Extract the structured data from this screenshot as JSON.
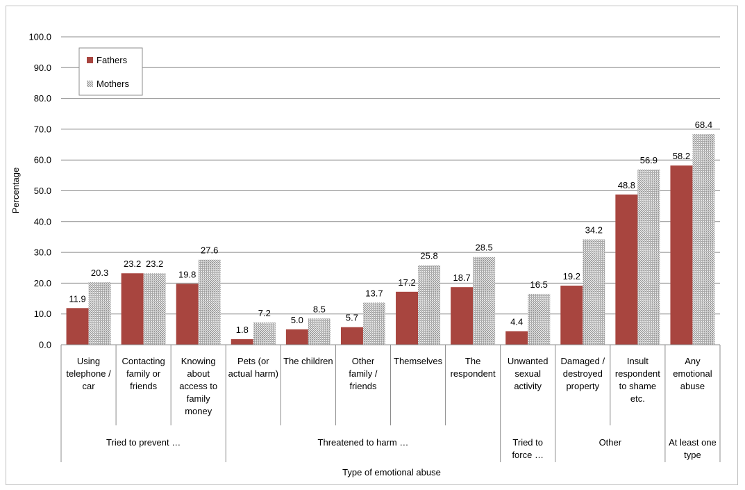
{
  "chart_data": {
    "type": "bar",
    "xlabel": "Type of emotional abuse",
    "ylabel": "Percentage",
    "ylim": [
      0,
      100
    ],
    "yticks": [
      "0.0",
      "10.0",
      "20.0",
      "30.0",
      "40.0",
      "50.0",
      "60.0",
      "70.0",
      "80.0",
      "90.0",
      "100.0"
    ],
    "grid": true,
    "legend_position": "top-left",
    "categories": [
      [
        "Using",
        "telephone /",
        "car"
      ],
      [
        "Contacting",
        "family or",
        "friends"
      ],
      [
        "Knowing",
        "about",
        "access to",
        "family",
        "money"
      ],
      [
        "Pets (or",
        "actual harm)"
      ],
      [
        "The children"
      ],
      [
        "Other",
        "family /",
        "friends"
      ],
      [
        "Themselves"
      ],
      [
        "The",
        "respondent"
      ],
      [
        "Unwanted",
        "sexual",
        "activity"
      ],
      [
        "Damaged /",
        "destroyed",
        "property"
      ],
      [
        "Insult",
        "respondent",
        "to shame",
        "etc."
      ],
      [
        "Any",
        "emotional",
        "abuse"
      ]
    ],
    "groups": [
      {
        "label": [
          "Tried to prevent …"
        ],
        "start": 0,
        "end": 2
      },
      {
        "label": [
          "Threatened to harm …"
        ],
        "start": 3,
        "end": 7
      },
      {
        "label": [
          "Tried to",
          "force …"
        ],
        "start": 8,
        "end": 8
      },
      {
        "label": [
          "Other"
        ],
        "start": 9,
        "end": 10
      },
      {
        "label": [
          "At least one",
          "type"
        ],
        "start": 11,
        "end": 11
      }
    ],
    "series": [
      {
        "name": "Fathers",
        "color": "#a8453f",
        "pattern": "solid",
        "values": [
          11.9,
          23.2,
          19.8,
          1.8,
          5.0,
          5.7,
          17.2,
          18.7,
          4.4,
          19.2,
          48.8,
          58.2
        ],
        "labels": [
          "11.9",
          "23.2",
          "19.8",
          "1.8",
          "5.0",
          "5.7",
          "17.2",
          "18.7",
          "4.4",
          "19.2",
          "48.8",
          "58.2"
        ]
      },
      {
        "name": "Mothers",
        "color": "#9a9a9a",
        "pattern": "diagonal-hatch",
        "values": [
          20.3,
          23.2,
          27.6,
          7.2,
          8.5,
          13.7,
          25.8,
          28.5,
          16.5,
          34.2,
          56.9,
          68.4
        ],
        "labels": [
          "20.3",
          "23.2",
          "27.6",
          "7.2",
          "8.5",
          "13.7",
          "25.8",
          "28.5",
          "16.5",
          "34.2",
          "56.9",
          "68.4"
        ]
      }
    ]
  }
}
